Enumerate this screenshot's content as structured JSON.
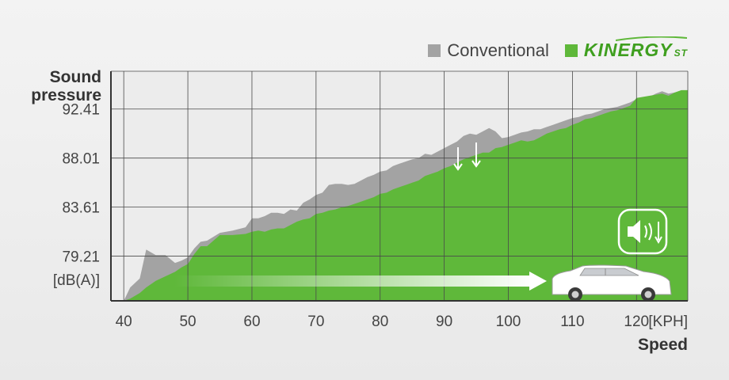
{
  "chart_data": {
    "type": "area",
    "ylabel": "Sound pressure",
    "xlabel": "Speed",
    "x_unit": "[KPH]",
    "y_unit": "[dB(A)]",
    "xlim": [
      38,
      128
    ],
    "ylim": [
      75.2,
      95.8
    ],
    "x_ticks": [
      40,
      50,
      60,
      70,
      80,
      90,
      100,
      110,
      120
    ],
    "y_ticks": [
      79.21,
      83.61,
      88.01,
      92.41
    ],
    "y_tick_labels": [
      "79.21",
      "83.61",
      "88.01",
      "92.41"
    ],
    "grid": true,
    "legend_position": "top-right",
    "series": [
      {
        "name": "Conventional",
        "color": "#a3a3a3",
        "x": [
          40,
          41,
          42.5,
          43.5,
          45,
          46.5,
          48,
          49,
          50,
          51,
          52,
          53,
          55,
          57,
          59,
          60,
          61,
          62,
          63,
          64,
          65,
          66,
          67,
          68,
          69,
          70,
          71,
          72,
          73,
          74,
          75,
          76,
          77,
          78,
          79,
          80,
          81,
          82,
          83,
          84,
          85,
          86,
          87,
          88,
          89,
          90,
          91,
          92,
          93,
          94,
          95,
          96,
          97,
          98,
          99,
          100,
          101,
          102,
          103,
          104,
          105,
          106,
          107,
          108,
          109,
          110,
          111,
          112,
          113,
          114,
          115,
          116,
          117,
          118,
          119,
          120,
          121,
          122,
          123,
          124,
          125,
          126,
          127,
          128
        ],
        "values": [
          75.2,
          76.4,
          77.2,
          79.8,
          79.3,
          79.3,
          78.6,
          78.8,
          79.1,
          79.9,
          80.5,
          80.6,
          81.3,
          81.5,
          81.8,
          82.6,
          82.6,
          82.8,
          83.1,
          83.1,
          83.0,
          83.4,
          83.3,
          84.0,
          84.3,
          84.7,
          84.9,
          85.6,
          85.7,
          85.7,
          85.6,
          85.7,
          86.0,
          86.3,
          86.5,
          86.8,
          86.9,
          87.3,
          87.5,
          87.7,
          87.9,
          88.0,
          88.4,
          88.3,
          88.6,
          88.9,
          89.2,
          89.5,
          90.0,
          90.2,
          90.1,
          90.4,
          90.7,
          90.4,
          89.8,
          89.9,
          90.1,
          90.3,
          90.4,
          90.6,
          90.6,
          90.8,
          91.0,
          91.2,
          91.4,
          91.6,
          91.7,
          91.9,
          92.0,
          92.2,
          92.4,
          92.5,
          92.6,
          92.8,
          93.0,
          93.3,
          93.4,
          93.5,
          93.8,
          94.0,
          93.8,
          93.9,
          94.0,
          94.0
        ]
      },
      {
        "name": "KINERGY ST",
        "color": "#5fb83a",
        "x": [
          40,
          41,
          42.5,
          43.5,
          45,
          46.5,
          48,
          49,
          50,
          51,
          52,
          53,
          55,
          57,
          59,
          60,
          61,
          62,
          63,
          64,
          65,
          66,
          67,
          68,
          69,
          70,
          71,
          72,
          73,
          74,
          75,
          76,
          77,
          78,
          79,
          80,
          81,
          82,
          83,
          84,
          85,
          86,
          87,
          88,
          89,
          90,
          91,
          92,
          93,
          94,
          95,
          96,
          97,
          98,
          99,
          100,
          101,
          102,
          103,
          104,
          105,
          106,
          107,
          108,
          109,
          110,
          111,
          112,
          113,
          114,
          115,
          116,
          117,
          118,
          119,
          120,
          121,
          122,
          123,
          124,
          125,
          126,
          127,
          128
        ],
        "values": [
          75.2,
          75.4,
          75.9,
          76.4,
          77.0,
          77.4,
          77.8,
          78.2,
          78.5,
          79.4,
          80.1,
          80.1,
          81.1,
          81.1,
          81.2,
          81.4,
          81.5,
          81.4,
          81.6,
          81.7,
          81.7,
          82.0,
          82.3,
          82.5,
          82.6,
          83.0,
          83.1,
          83.3,
          83.4,
          83.6,
          83.7,
          83.9,
          84.1,
          84.3,
          84.5,
          84.8,
          84.9,
          85.2,
          85.4,
          85.6,
          85.8,
          86.0,
          86.4,
          86.6,
          86.8,
          87.1,
          87.3,
          87.6,
          87.9,
          88.1,
          88.3,
          88.5,
          88.5,
          88.9,
          89.0,
          89.2,
          89.4,
          89.6,
          89.5,
          89.6,
          89.9,
          90.2,
          90.4,
          90.6,
          90.7,
          91.0,
          91.2,
          91.5,
          91.6,
          91.8,
          92.0,
          92.2,
          92.3,
          92.5,
          92.7,
          93.4,
          93.5,
          93.6,
          93.7,
          93.8,
          93.6,
          93.9,
          94.1,
          94.1
        ]
      }
    ]
  },
  "legend": {
    "conventional_label": "Conventional",
    "kinergy_label": "KINERGY",
    "kinergy_sub": "ST",
    "conventional_color": "#a3a3a3",
    "kinergy_color": "#5fb83a"
  },
  "axis": {
    "ylabel_line1": "Sound",
    "ylabel_line2": "pressure",
    "xlabel": "Speed"
  },
  "icons": {
    "car": "sedan-car-icon",
    "speaker": "speaker-volume-down-icon",
    "arrows": "down-arrows-icon"
  }
}
